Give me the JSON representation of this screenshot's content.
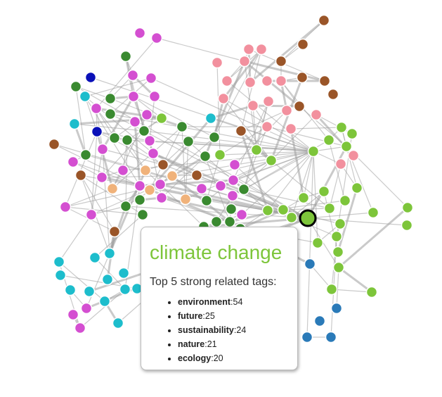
{
  "tooltip": {
    "title": "climate change",
    "subtitle": "Top 5 strong related tags:",
    "title_color": "#7dc53a",
    "items": [
      {
        "tag": "environment",
        "count": "54"
      },
      {
        "tag": "future",
        "count": "25"
      },
      {
        "tag": "sustainability",
        "count": "24"
      },
      {
        "tag": "nature",
        "count": "21"
      },
      {
        "tag": "ecology",
        "count": "20"
      }
    ]
  },
  "palette": {
    "magenta": "#d44fd1",
    "green": "#3a8a30",
    "lime": "#7dc53a",
    "pink": "#f2909e",
    "brown": "#9a5528",
    "cyan": "#1dbdcc",
    "orange": "#f0b27a",
    "blue": "#2a7ab8",
    "navy": "#0a10b8"
  }
}
